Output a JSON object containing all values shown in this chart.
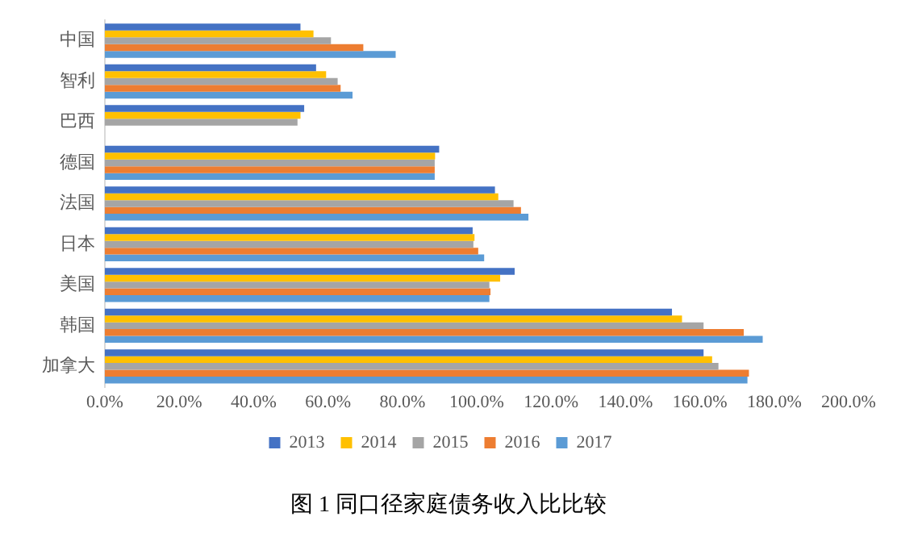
{
  "chart_data": {
    "type": "bar",
    "orientation": "horizontal",
    "title": "图 1  同口径家庭债务收入比比较",
    "categories": [
      "中国",
      "智利",
      "巴西",
      "德国",
      "法国",
      "日本",
      "美国",
      "韩国",
      "加拿大"
    ],
    "series": [
      {
        "name": "2013",
        "color": "#4472c4",
        "values": [
          52.6,
          56.8,
          53.6,
          89.9,
          104.9,
          98.9,
          110.2,
          152.5,
          161
        ]
      },
      {
        "name": "2014",
        "color": "#ffc000",
        "values": [
          56.1,
          59.5,
          52.6,
          88.8,
          105.8,
          99.4,
          106.3,
          155.2,
          163.3
        ]
      },
      {
        "name": "2015",
        "color": "#a5a5a5",
        "values": [
          60.8,
          62.6,
          51.8,
          88.7,
          109.9,
          99.1,
          103.4,
          161,
          165
        ]
      },
      {
        "name": "2016",
        "color": "#ed7d31",
        "values": [
          69.5,
          63.4,
          null,
          88.7,
          111.9,
          100.4,
          103.7,
          171.8,
          173.2
        ]
      },
      {
        "name": "2017",
        "color": "#5b9bd5",
        "values": [
          78.2,
          66.6,
          null,
          88.7,
          113.9,
          102,
          103.4,
          176.9,
          172.8
        ]
      }
    ],
    "xlim": [
      0,
      200
    ],
    "xticks": [
      {
        "value": 0,
        "label": "0.0%"
      },
      {
        "value": 20,
        "label": "20.0%"
      },
      {
        "value": 40,
        "label": "40.0%"
      },
      {
        "value": 60,
        "label": "60.0%"
      },
      {
        "value": 80,
        "label": "80.0%"
      },
      {
        "value": 100,
        "label": "100.0%"
      },
      {
        "value": 120,
        "label": "120.0%"
      },
      {
        "value": 140,
        "label": "140.0%"
      },
      {
        "value": 160,
        "label": "160.0%"
      },
      {
        "value": 180,
        "label": "180.0%"
      },
      {
        "value": 200,
        "label": "200.0%"
      }
    ],
    "grid": false,
    "legend": "bottom"
  }
}
